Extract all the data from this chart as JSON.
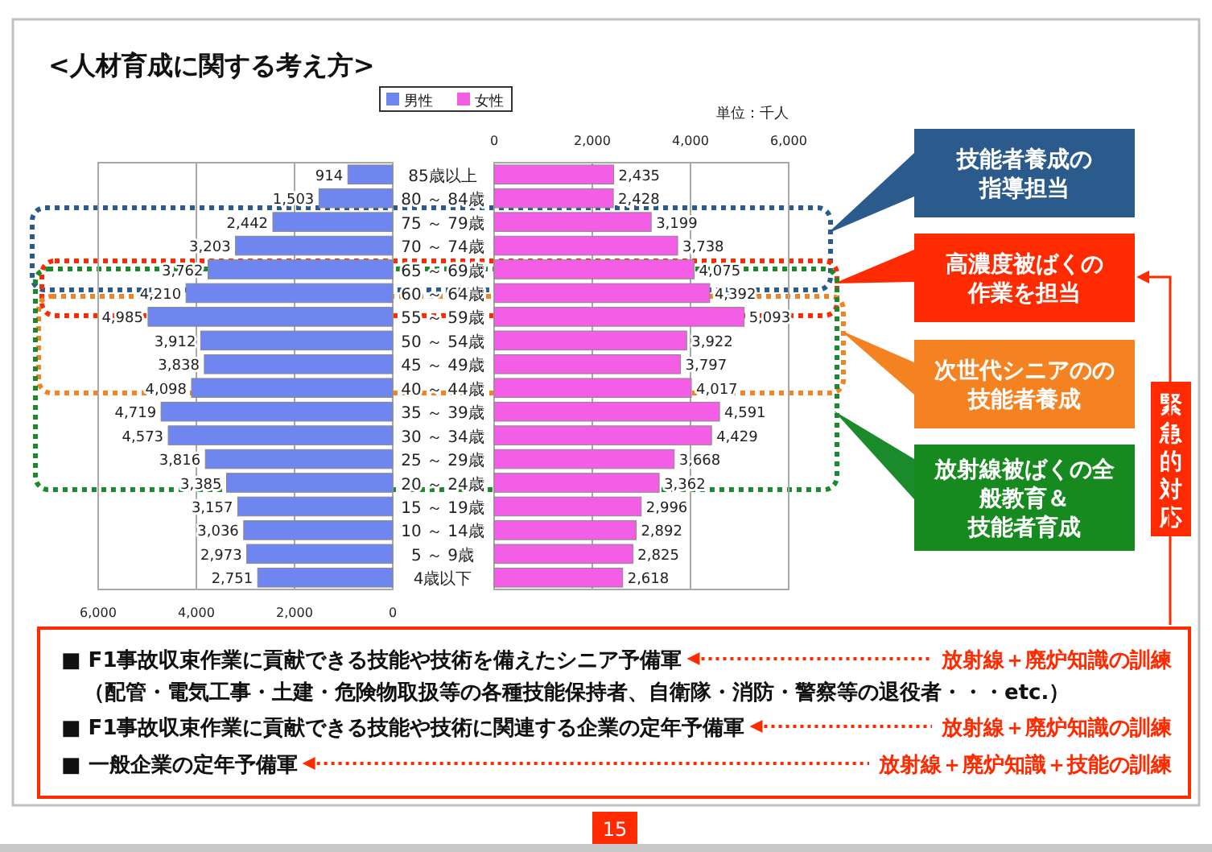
{
  "chart_data": [
    {
      "type": "bar",
      "orientation": "horizontal",
      "title": "<人材育成に関する考え方>",
      "categories": [
        "85歳以上",
        "80 ～ 84歳",
        "75 ～ 79歳",
        "70 ～ 74歳",
        "65 ～ 69歳",
        "60 ～ 64歳",
        "55 ～ 59歳",
        "50 ～ 54歳",
        "45 ～ 49歳",
        "40 ～ 44歳",
        "35 ～ 39歳",
        "30 ～ 34歳",
        "25 ～ 29歳",
        "20 ～ 24歳",
        "15 ～ 19歳",
        "10 ～ 14歳",
        "5 ～ 9歳",
        "4歳以下"
      ],
      "series": [
        {
          "name": "男性",
          "color": "#6f86f0",
          "values": [
            914,
            1503,
            2442,
            3203,
            3762,
            4210,
            4985,
            3912,
            3838,
            4098,
            4719,
            4573,
            3816,
            3385,
            3157,
            3036,
            2973,
            2751
          ],
          "value_labels": [
            "914",
            "1,503",
            "2,442",
            "3,203",
            "3,762",
            "4,210",
            "4,985",
            "3,912",
            "3,838",
            "4,098",
            "4,719",
            "4,573",
            "3,816",
            "3,385",
            "3,157",
            "3,036",
            "2,973",
            "2,751"
          ]
        }
      ],
      "xlim": [
        6000,
        0
      ],
      "xticks": [
        {
          "value": 6000,
          "label": "6,000"
        },
        {
          "value": 4000,
          "label": "4,000"
        },
        {
          "value": 2000,
          "label": "2,000"
        },
        0
      ],
      "grid": "x",
      "legend": "top"
    },
    {
      "type": "bar",
      "orientation": "horizontal",
      "categories": [
        null,
        null,
        null,
        null,
        null,
        null,
        null,
        null,
        null,
        null,
        null,
        null,
        null,
        null,
        null,
        null,
        null,
        null
      ],
      "series": [
        {
          "name": "女性",
          "color": "#f45ee6",
          "values": [
            2435,
            2428,
            3199,
            3738,
            4075,
            4392,
            5093,
            3922,
            3797,
            4017,
            4591,
            4429,
            3668,
            3362,
            2996,
            2892,
            2825,
            2618
          ],
          "value_labels": [
            "2,435",
            "2,428",
            "3,199",
            "3,738",
            "4,075",
            "4,392",
            "5,093",
            "3,922",
            "3,797",
            "4,017",
            "4,591",
            "4,429",
            "3,668",
            "3,362",
            "2,996",
            "2,892",
            "2,825",
            "2,618"
          ]
        }
      ],
      "xlim": [
        0,
        6000
      ],
      "xticks": [
        0,
        {
          "value": 2000,
          "label": "2,000"
        },
        {
          "value": 4000,
          "label": "4,000"
        },
        {
          "value": 6000,
          "label": "6,000"
        }
      ],
      "grid": "x",
      "legend": "top",
      "tick_labels": "x",
      "annotations": [
        "単位：千人"
      ]
    },
    {
      "type": "other",
      "annotations": [
        "技能者養成の指導担当",
        "高濃度被ばくの作業を担当",
        "次世代シニアのの技能者養成",
        "放射線被ばくの全般教育＆技能者育成",
        "緊急的対応",
        "■ F1事故収束作業に貢献できる技能や技術を備えたシニア予備軍",
        "（配管・電気工事・土建・危険物取扱等の各種技能保持者、自衛隊・消防・警察等の退役者・・・etc.）",
        "■ F1事故収束作業に貢献できる技能や技術に関連する企業の定年予備軍",
        "■ 一般企業の定年予備軍",
        "放射線＋廃炉知識の訓練",
        "放射線＋廃炉知識の訓練",
        "放射線＋廃炉知識＋技能の訓練",
        "15"
      ]
    }
  ]
}
